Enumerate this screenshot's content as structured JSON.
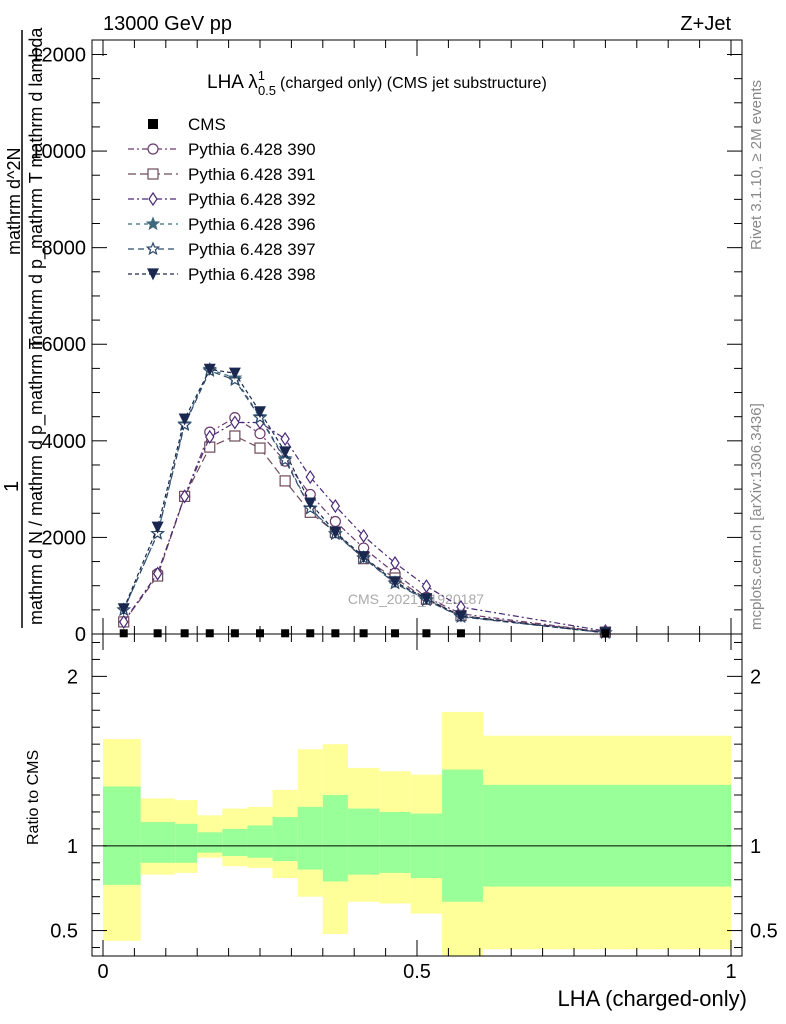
{
  "header": {
    "left": "13000 GeV pp",
    "right": "Z+Jet"
  },
  "side_labels": {
    "rivet": "Rivet 3.1.10, ≥ 2M events",
    "mcplots": "mcplots.cern.ch [arXiv:1306.3436]"
  },
  "watermark": "CMS_2021_I1920187",
  "chart_data": [
    {
      "type": "line",
      "title": "LHA λ",
      "title_sup": "1",
      "title_sub": "0.5",
      "title_suffix": "(charged only) (CMS jet substructure)",
      "xlabel": "",
      "ylabel_numerator": "1",
      "ylabel_denominator": "mathrm d N / mathrm d p_mathrm T",
      "ylabel_right_num": "mathrm d^2N",
      "ylabel_right_den": "mathrm d p_mathrm T mathrm d lambda",
      "xlim": [
        0,
        1
      ],
      "ylim": [
        0,
        12300
      ],
      "yticks": [
        0,
        2000,
        4000,
        6000,
        8000,
        10000,
        12000
      ],
      "ytick_labels": [
        "0",
        "2000",
        "4000",
        "6000",
        "8000",
        "10000",
        "12000"
      ],
      "x": [
        0.033,
        0.087,
        0.13,
        0.17,
        0.21,
        0.25,
        0.29,
        0.33,
        0.37,
        0.415,
        0.465,
        0.515,
        0.57,
        0.8
      ],
      "data_series": {
        "name": "CMS",
        "marker": "square",
        "color": "#000000",
        "values": [
          15,
          15,
          15,
          15,
          15,
          15,
          15,
          15,
          15,
          15,
          15,
          15,
          15,
          15
        ]
      },
      "series": [
        {
          "name": "Pythia 6.428 390",
          "marker": "circle-open",
          "color": "#6b3a6e",
          "dash": "6,3,2,3",
          "values": [
            250,
            1250,
            2850,
            4180,
            4480,
            4150,
            3580,
            2890,
            2330,
            1780,
            1260,
            760,
            420,
            40
          ]
        },
        {
          "name": "Pythia 6.428 391",
          "marker": "square-open",
          "color": "#6e4a5a",
          "dash": "8,4",
          "values": [
            250,
            1200,
            2850,
            3870,
            4100,
            3850,
            3170,
            2520,
            2100,
            1560,
            1160,
            720,
            380,
            40
          ]
        },
        {
          "name": "Pythia 6.428 392",
          "marker": "diamond-open",
          "color": "#4a2a78",
          "dash": "6,3,2,3",
          "values": [
            250,
            1250,
            2850,
            4080,
            4380,
            4380,
            4040,
            3250,
            2650,
            2030,
            1470,
            990,
            560,
            60
          ]
        },
        {
          "name": "Pythia 6.428 396",
          "marker": "star-filled",
          "color": "#3e6a7e",
          "dash": "4,4",
          "values": [
            500,
            2080,
            4350,
            5480,
            5300,
            4500,
            3630,
            2610,
            2080,
            1580,
            1060,
            710,
            360,
            25
          ]
        },
        {
          "name": "Pythia 6.428 397",
          "marker": "star-open",
          "color": "#2e4a6a",
          "dash": "6,4",
          "values": [
            500,
            2080,
            4330,
            5450,
            5260,
            4480,
            3600,
            2600,
            2070,
            1570,
            1050,
            700,
            355,
            25
          ]
        },
        {
          "name": "Pythia 6.428 398",
          "marker": "triangle-down-filled",
          "color": "#1a2850",
          "dash": "4,3",
          "values": [
            520,
            2210,
            4450,
            5480,
            5400,
            4600,
            3770,
            2710,
            2110,
            1600,
            1080,
            730,
            370,
            25
          ]
        }
      ]
    },
    {
      "type": "area",
      "ylabel": "Ratio to CMS",
      "xlabel": "LHA (charged-only)",
      "xlim": [
        0,
        1
      ],
      "ylim": [
        0.35,
        2.25
      ],
      "xticks": [
        0,
        0.5,
        1
      ],
      "xtick_labels": [
        "0",
        "0.5",
        "1"
      ],
      "yticks": [
        0.5,
        1,
        2
      ],
      "ytick_labels": [
        "0.5",
        "1",
        "2"
      ],
      "reference": 1,
      "bins": [
        {
          "lo": 0.0,
          "hi": 0.06,
          "outer": [
            0.44,
            1.63
          ],
          "inner": [
            0.77,
            1.35
          ]
        },
        {
          "lo": 0.06,
          "hi": 0.115,
          "outer": [
            0.83,
            1.28
          ],
          "inner": [
            0.9,
            1.14
          ]
        },
        {
          "lo": 0.115,
          "hi": 0.15,
          "outer": [
            0.84,
            1.27
          ],
          "inner": [
            0.9,
            1.13
          ]
        },
        {
          "lo": 0.15,
          "hi": 0.19,
          "outer": [
            0.93,
            1.18
          ],
          "inner": [
            0.96,
            1.08
          ]
        },
        {
          "lo": 0.19,
          "hi": 0.23,
          "outer": [
            0.88,
            1.22
          ],
          "inner": [
            0.94,
            1.1
          ]
        },
        {
          "lo": 0.23,
          "hi": 0.27,
          "outer": [
            0.87,
            1.23
          ],
          "inner": [
            0.93,
            1.12
          ]
        },
        {
          "lo": 0.27,
          "hi": 0.31,
          "outer": [
            0.81,
            1.33
          ],
          "inner": [
            0.91,
            1.17
          ]
        },
        {
          "lo": 0.31,
          "hi": 0.35,
          "outer": [
            0.7,
            1.57
          ],
          "inner": [
            0.86,
            1.23
          ]
        },
        {
          "lo": 0.35,
          "hi": 0.39,
          "outer": [
            0.48,
            1.6
          ],
          "inner": [
            0.79,
            1.3
          ]
        },
        {
          "lo": 0.39,
          "hi": 0.44,
          "outer": [
            0.67,
            1.46
          ],
          "inner": [
            0.83,
            1.22
          ]
        },
        {
          "lo": 0.44,
          "hi": 0.49,
          "outer": [
            0.66,
            1.44
          ],
          "inner": [
            0.84,
            1.2
          ]
        },
        {
          "lo": 0.49,
          "hi": 0.54,
          "outer": [
            0.6,
            1.42
          ],
          "inner": [
            0.81,
            1.19
          ]
        },
        {
          "lo": 0.54,
          "hi": 0.605,
          "outer": [
            0.35,
            1.79
          ],
          "inner": [
            0.67,
            1.45
          ]
        },
        {
          "lo": 0.605,
          "hi": 1.0,
          "outer": [
            0.39,
            1.65
          ],
          "inner": [
            0.76,
            1.36
          ]
        }
      ]
    }
  ],
  "colors": {
    "outer_band": "#ffff99",
    "inner_band": "#99ff99"
  }
}
